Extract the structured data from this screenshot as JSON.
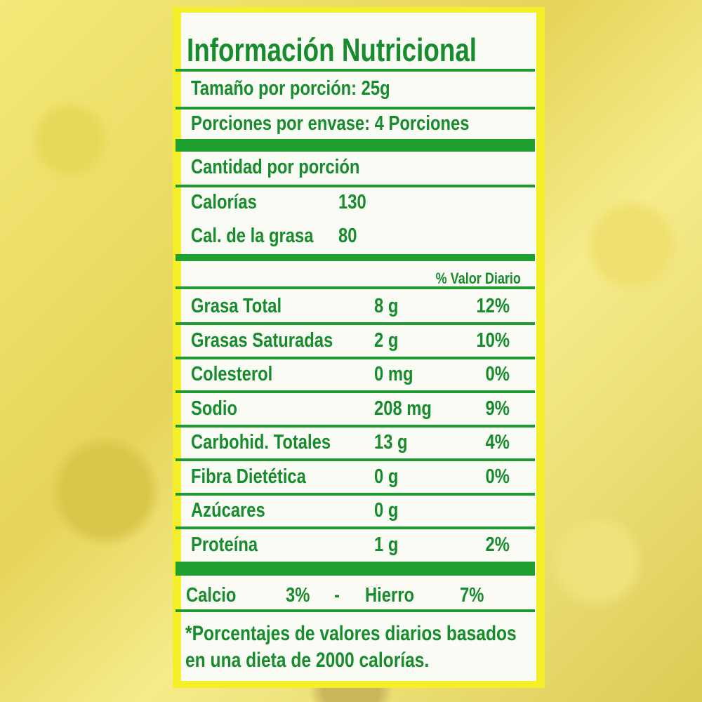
{
  "title": "Información Nutricional",
  "serving_size": "Tamaño por porción: 25g",
  "servings_per_container": "Porciones por envase: 4 Porciones",
  "amount_per_serving": "Cantidad por porción",
  "calories": {
    "label": "Calorías",
    "value": "130"
  },
  "fat_calories": {
    "label": "Cal. de la grasa",
    "value": "80"
  },
  "daily_value_header": "% Valor Diario",
  "nutrients": [
    {
      "label": "Grasa Total",
      "amount": "8 g",
      "dv": "12%"
    },
    {
      "label": "Grasas Saturadas",
      "amount": "2 g",
      "dv": "10%"
    },
    {
      "label": "Colesterol",
      "amount": "0 mg",
      "dv": "0%"
    },
    {
      "label": "Sodio",
      "amount": "208 mg",
      "dv": "9%"
    },
    {
      "label": "Carbohid. Totales",
      "amount": "13 g",
      "dv": "4%"
    },
    {
      "label": "Fibra Dietética",
      "amount": "0 g",
      "dv": "0%"
    },
    {
      "label": "Azúcares",
      "amount": "0 g",
      "dv": ""
    },
    {
      "label": "Proteína",
      "amount": "1 g",
      "dv": "2%"
    }
  ],
  "minerals": {
    "calcium_label": "Calcio",
    "calcium_value": "3%",
    "separator": "-",
    "iron_label": "Hierro",
    "iron_value": "7%"
  },
  "footnote": [
    "*Porcentajes de valores diarios basados",
    "en una dieta de 2000 calorías."
  ],
  "colors": {
    "text_green": "#168c2c",
    "line_green": "#1e9a2e",
    "border_yellow": "#f5ef2a"
  }
}
